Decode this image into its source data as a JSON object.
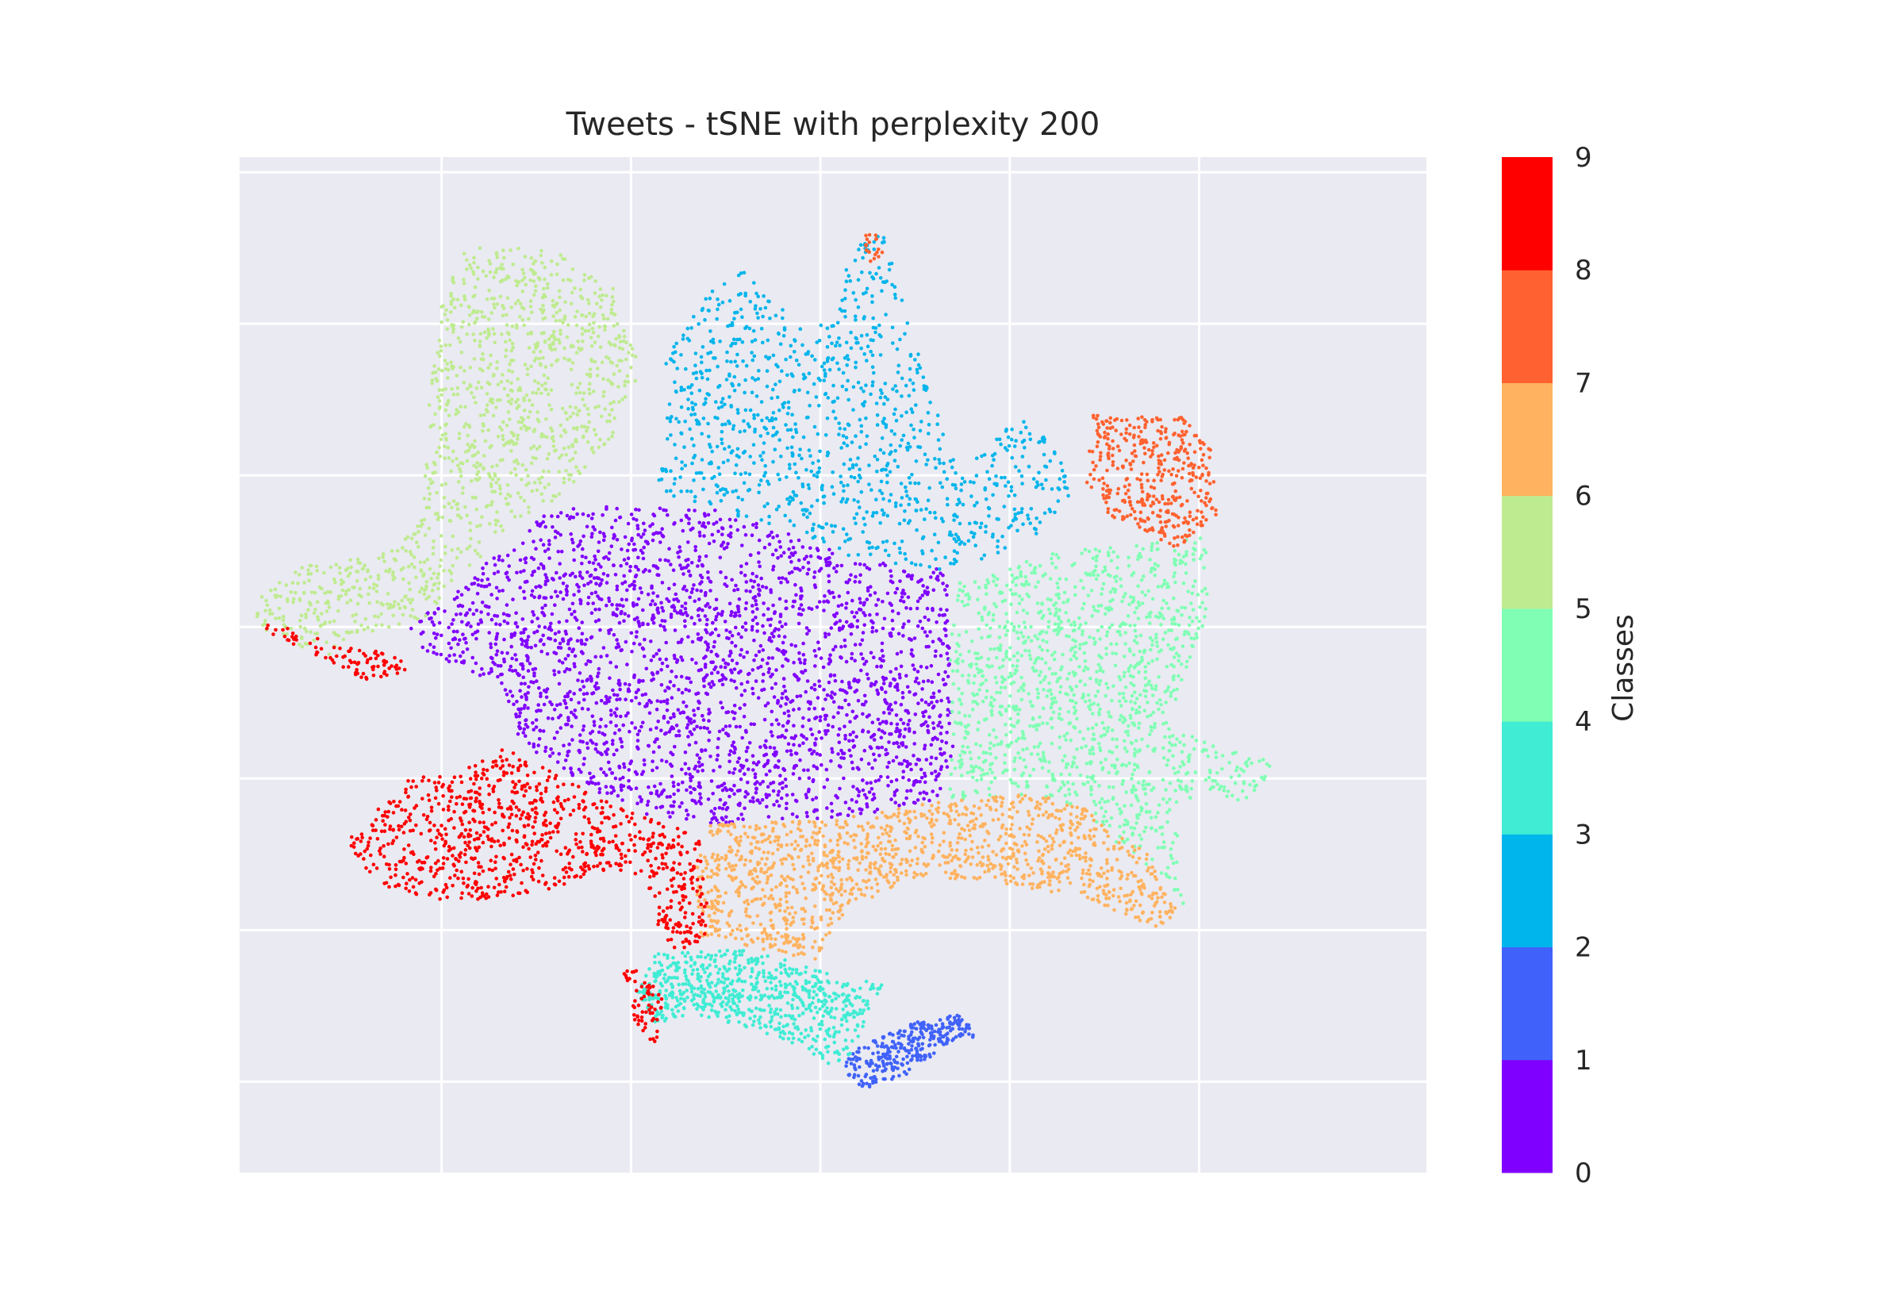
{
  "chart_data": {
    "type": "scatter",
    "title": "Tweets - tSNE with perplexity 200",
    "xlabel": "",
    "ylabel": "",
    "x_ticks_shown": false,
    "y_ticks_shown": false,
    "grid": true,
    "plot_background": "#EAEAF2",
    "grid_color": "#FFFFFF",
    "colorbar": {
      "label": "Classes",
      "ticks": [
        "0",
        "1",
        "2",
        "3",
        "4",
        "5",
        "6",
        "7",
        "8",
        "9"
      ],
      "colors": [
        "#8000FF",
        "#4062FA",
        "#00B5EB",
        "#40ECD4",
        "#80FFB4",
        "#BFEB90",
        "#FFB360",
        "#FF6230",
        "#FF0000"
      ]
    },
    "series": [
      {
        "class": 0,
        "color": "#8000FF",
        "count": 2600,
        "polygon": [
          [
            -6.5,
            1.0
          ],
          [
            -4.2,
            2.6
          ],
          [
            -1.6,
            2.55
          ],
          [
            0.6,
            1.9
          ],
          [
            2.0,
            1.75
          ],
          [
            2.1,
            -0.6
          ],
          [
            1.9,
            -1.3
          ],
          [
            0.2,
            -1.55
          ],
          [
            -1.8,
            -1.6
          ],
          [
            -3.0,
            -1.45
          ],
          [
            -4.8,
            -0.5
          ],
          [
            -5.0,
            0.2
          ],
          [
            -6.3,
            0.7
          ]
        ]
      },
      {
        "class": 1,
        "color": "#4062FA",
        "count": 300,
        "polygon": [
          [
            0.5,
            -4.6
          ],
          [
            1.5,
            -4.2
          ],
          [
            2.2,
            -4.1
          ],
          [
            2.5,
            -4.4
          ],
          [
            2.0,
            -4.5
          ],
          [
            1.4,
            -4.9
          ],
          [
            0.7,
            -5.1
          ],
          [
            0.3,
            -4.9
          ]
        ]
      },
      {
        "class": 2,
        "color": "#00B5EB",
        "count": 1100,
        "polygon": [
          [
            -2.5,
            4.5
          ],
          [
            -1.7,
            5.5
          ],
          [
            -1.2,
            5.7
          ],
          [
            -0.1,
            4.8
          ],
          [
            0.6,
            6.1
          ],
          [
            1.0,
            6.2
          ],
          [
            1.6,
            4.5
          ],
          [
            2.2,
            3.0
          ],
          [
            2.7,
            3.5
          ],
          [
            3.3,
            3.8
          ],
          [
            3.8,
            3.2
          ],
          [
            4.0,
            2.8
          ],
          [
            3.5,
            2.2
          ],
          [
            2.6,
            1.9
          ],
          [
            2.0,
            1.75
          ],
          [
            0.6,
            1.9
          ],
          [
            -1.6,
            2.55
          ],
          [
            -2.7,
            2.8
          ],
          [
            -2.5,
            3.5
          ],
          [
            -2.3,
            4.3
          ]
        ]
      },
      {
        "class": 3,
        "color": "#40ECD4",
        "count": 700,
        "polygon": [
          [
            -2.6,
            -3.3
          ],
          [
            -1.0,
            -3.25
          ],
          [
            0.2,
            -3.6
          ],
          [
            1.0,
            -3.7
          ],
          [
            0.5,
            -4.6
          ],
          [
            0.3,
            -4.85
          ],
          [
            -0.4,
            -4.5
          ],
          [
            -1.1,
            -4.3
          ],
          [
            -2.0,
            -4.1
          ],
          [
            -2.7,
            -4.25
          ],
          [
            -2.9,
            -3.8
          ]
        ]
      },
      {
        "class": 4,
        "color": "#80FFB4",
        "count": 1400,
        "polygon": [
          [
            2.2,
            1.6
          ],
          [
            3.8,
            2.0
          ],
          [
            5.2,
            2.1
          ],
          [
            6.1,
            2.2
          ],
          [
            6.2,
            1.2
          ],
          [
            5.5,
            -0.3
          ],
          [
            6.3,
            -0.6
          ],
          [
            7.3,
            -0.8
          ],
          [
            6.7,
            -1.3
          ],
          [
            5.9,
            -1.2
          ],
          [
            5.6,
            -1.9
          ],
          [
            5.8,
            -2.7
          ],
          [
            5.3,
            -2.2
          ],
          [
            4.7,
            -1.9
          ],
          [
            4.2,
            -1.4
          ],
          [
            3.4,
            -1.2
          ],
          [
            2.0,
            -1.3
          ],
          [
            2.1,
            -0.6
          ],
          [
            2.05,
            0.8
          ]
        ]
      },
      {
        "class": 5,
        "color": "#BFEB90",
        "count": 1200,
        "polygon": [
          [
            -6.0,
            5.3
          ],
          [
            -5.6,
            6.0
          ],
          [
            -4.2,
            6.0
          ],
          [
            -3.3,
            5.5
          ],
          [
            -2.8,
            4.5
          ],
          [
            -3.3,
            3.5
          ],
          [
            -3.8,
            3.0
          ],
          [
            -4.3,
            2.6
          ],
          [
            -4.9,
            2.4
          ],
          [
            -5.4,
            1.9
          ],
          [
            -6.3,
            1.1
          ],
          [
            -7.2,
            0.9
          ],
          [
            -7.8,
            0.6
          ],
          [
            -9.0,
            1.0
          ],
          [
            -8.9,
            1.4
          ],
          [
            -8.2,
            1.8
          ],
          [
            -6.8,
            2.0
          ],
          [
            -6.3,
            2.5
          ],
          [
            -6.2,
            4.0
          ]
        ]
      },
      {
        "class": 6,
        "color": "#FFB360",
        "count": 1300,
        "polygon": [
          [
            -1.8,
            -1.6
          ],
          [
            0.2,
            -1.55
          ],
          [
            1.9,
            -1.3
          ],
          [
            3.4,
            -1.2
          ],
          [
            4.2,
            -1.4
          ],
          [
            5.2,
            -2.0
          ],
          [
            5.7,
            -2.8
          ],
          [
            5.2,
            -3.0
          ],
          [
            4.3,
            -2.6
          ],
          [
            3.0,
            -2.4
          ],
          [
            1.4,
            -2.3
          ],
          [
            0.2,
            -2.9
          ],
          [
            0.0,
            -3.4
          ],
          [
            -1.0,
            -3.25
          ],
          [
            -1.9,
            -3.1
          ],
          [
            -2.0,
            -2.2
          ]
        ]
      },
      {
        "class": 7,
        "color": "#FF6230",
        "count": 400,
        "polygon": [
          [
            4.3,
            3.8
          ],
          [
            5.7,
            3.8
          ],
          [
            6.2,
            3.4
          ],
          [
            6.3,
            2.5
          ],
          [
            5.7,
            2.0
          ],
          [
            5.1,
            2.3
          ],
          [
            4.6,
            2.4
          ],
          [
            4.2,
            2.9
          ]
        ]
      },
      {
        "class": 7,
        "color": "#FF6230",
        "count": 20,
        "polygon": [
          [
            0.6,
            6.2
          ],
          [
            0.9,
            6.2
          ],
          [
            1.0,
            5.9
          ],
          [
            0.8,
            5.8
          ]
        ]
      },
      {
        "class": 8,
        "color": "#FF0000",
        "count": 900,
        "polygon": [
          [
            -5.0,
            -0.6
          ],
          [
            -3.0,
            -1.45
          ],
          [
            -2.4,
            -1.6
          ],
          [
            -1.9,
            -1.8
          ],
          [
            -1.8,
            -2.5
          ],
          [
            -1.8,
            -3.1
          ],
          [
            -2.3,
            -3.3
          ],
          [
            -2.6,
            -2.9
          ],
          [
            -2.8,
            -2.3
          ],
          [
            -3.3,
            -2.2
          ],
          [
            -4.8,
            -2.6
          ],
          [
            -6.0,
            -2.6
          ],
          [
            -7.1,
            -2.4
          ],
          [
            -7.5,
            -1.8
          ],
          [
            -6.5,
            -1.0
          ],
          [
            -5.7,
            -0.9
          ]
        ]
      },
      {
        "class": 8,
        "color": "#FF0000",
        "count": 90,
        "polygon": [
          [
            -9.0,
            1.0
          ],
          [
            -7.9,
            0.6
          ],
          [
            -7.2,
            0.3
          ],
          [
            -6.5,
            0.4
          ],
          [
            -6.7,
            0.65
          ],
          [
            -7.6,
            0.75
          ],
          [
            -8.6,
            1.05
          ]
        ]
      },
      {
        "class": 8,
        "color": "#FF0000",
        "count": 60,
        "polygon": [
          [
            -3.2,
            -3.5
          ],
          [
            -2.8,
            -3.55
          ],
          [
            -2.5,
            -3.9
          ],
          [
            -2.6,
            -4.5
          ],
          [
            -2.9,
            -4.4
          ],
          [
            -3.0,
            -4.0
          ]
        ]
      }
    ],
    "xlim": [
      -9.2,
      9.6
    ],
    "ylim": [
      -6.2,
      7.2
    ],
    "grid_x": [
      -6,
      -3,
      0,
      3,
      6
    ],
    "grid_y": [
      -5,
      -3,
      -1,
      1,
      3,
      5,
      7
    ]
  }
}
